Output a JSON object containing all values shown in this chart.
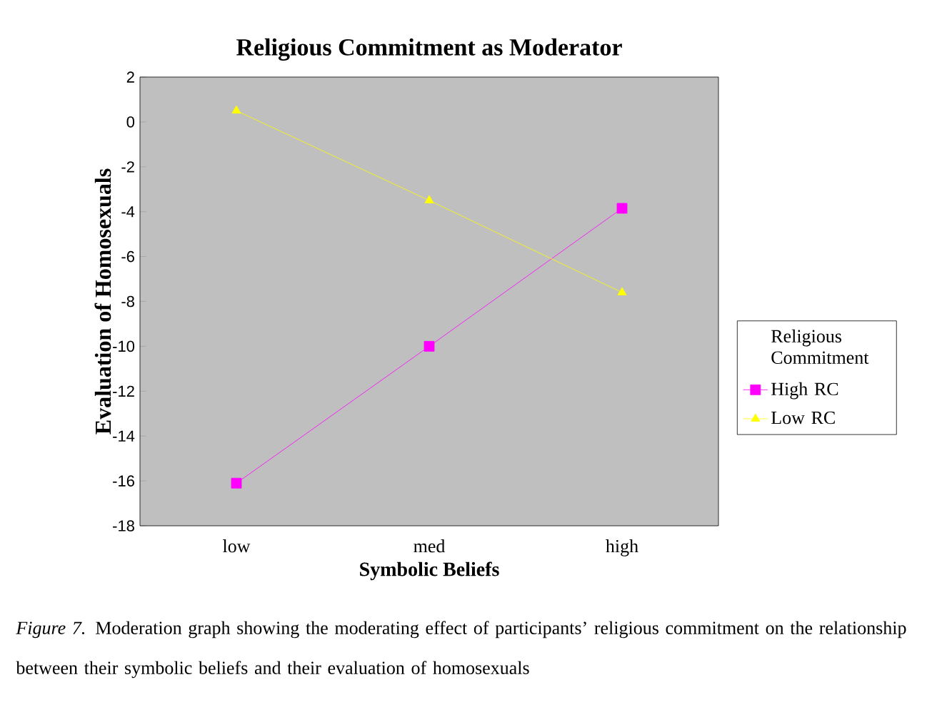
{
  "chart_data": {
    "type": "line",
    "title": "Religious Commitment as Moderator",
    "xlabel": "Symbolic Beliefs",
    "ylabel": "Evaluation of Homosexuals",
    "categories": [
      "low",
      "med",
      "high"
    ],
    "series": [
      {
        "name": "High RC",
        "color": "#ff00ff",
        "marker": "square",
        "values": [
          -16.1,
          -10,
          -3.85
        ]
      },
      {
        "name": "Low RC",
        "color": "#ffff00",
        "marker": "triangle",
        "values": [
          0.5,
          -3.5,
          -7.6
        ]
      }
    ],
    "ylim": [
      -18,
      2
    ],
    "yticks": [
      -18,
      -16,
      -14,
      -12,
      -10,
      -8,
      -6,
      -4,
      -2,
      0,
      2
    ],
    "legend": "right",
    "legend_title": "Religious Commitment",
    "annotations": [
      "*Figure 7.* Moderation graph showing the moderating effect of participants’ religious commitment on the relationship between their symbolic beliefs and their evaluation of homosexuals"
    ]
  }
}
